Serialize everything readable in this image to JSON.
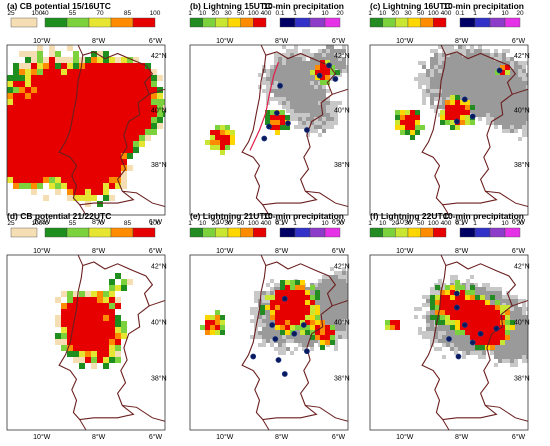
{
  "panels": [
    {
      "id": "a",
      "title": "(a) CB potential   15/16UTC",
      "kind": "cb",
      "legend": {
        "labels": [
          "25",
          "100"
        ],
        "colors": [
          "#f5deb3"
        ]
      },
      "legend2": {
        "labels": [
          "40",
          "55",
          "70",
          "85",
          "100"
        ],
        "colors": [
          "#1e8f1e",
          "#7cd23c",
          "#e6e632",
          "#ff8c00",
          "#e60000"
        ]
      },
      "right_labels": [
        "42°N",
        "40°N",
        "38°N"
      ],
      "top_labels": [
        "10°W",
        "8°W",
        "6°W"
      ],
      "bottom_labels": [
        "10°W",
        "8°W",
        "6°W"
      ]
    },
    {
      "id": "b",
      "title": "(b) Lightning   15UTC",
      "title2": "10-min precipitation",
      "kind": "lt",
      "legend": {
        "labels": [
          "1",
          "10",
          "20",
          "30",
          "50",
          "100",
          "400"
        ],
        "colors": [
          "#228b22",
          "#7cd23c",
          "#c8e632",
          "#ffd700",
          "#ff8c00",
          "#e60000"
        ]
      },
      "legend2": {
        "labels": [
          "0.1",
          "1",
          "4",
          "10",
          "20"
        ],
        "colors": [
          "#000064",
          "#3232c8",
          "#8c3cc8",
          "#e632e6"
        ]
      },
      "right_labels": [
        "42°N",
        "40°N",
        "38°N"
      ],
      "top_labels": [
        "10°W",
        "8°W",
        "6°W"
      ],
      "bottom_labels": [
        "10°W",
        "8°W",
        "6°W"
      ]
    },
    {
      "id": "c",
      "title": "(c) Lightning   16UTC",
      "title2": "10-min precipitation",
      "kind": "lt",
      "legend": {
        "labels": [
          "1",
          "10",
          "20",
          "30",
          "50",
          "100",
          "400"
        ],
        "colors": [
          "#228b22",
          "#7cd23c",
          "#c8e632",
          "#ffd700",
          "#ff8c00",
          "#e60000"
        ]
      },
      "legend2": {
        "labels": [
          "0.1",
          "1",
          "4",
          "10",
          "20"
        ],
        "colors": [
          "#000064",
          "#3232c8",
          "#8c3cc8",
          "#e632e6"
        ]
      },
      "right_labels": [
        "42°N",
        "40°N",
        "38°N"
      ],
      "top_labels": [
        "10°W",
        "8°W",
        "6°W"
      ],
      "bottom_labels": [
        "10°W",
        "8°W",
        "6°W"
      ]
    },
    {
      "id": "d",
      "title": "(d) CB potential   21/22UTC",
      "kind": "cb",
      "legend": {
        "labels": [
          "25",
          "100"
        ],
        "colors": [
          "#f5deb3"
        ]
      },
      "legend2": {
        "labels": [
          "40",
          "55",
          "70",
          "85",
          "100"
        ],
        "colors": [
          "#1e8f1e",
          "#7cd23c",
          "#e6e632",
          "#ff8c00",
          "#e60000"
        ]
      },
      "right_labels": [
        "42°N",
        "40°N",
        "38°N"
      ],
      "top_labels": [
        "10°W",
        "8°W",
        "6°W"
      ],
      "bottom_labels": [
        "10°W",
        "8°W",
        "6°W"
      ]
    },
    {
      "id": "e",
      "title": "(e) Lightning   21UTC",
      "title2": "10-min precipitation",
      "kind": "lt",
      "legend": {
        "labels": [
          "1",
          "10",
          "20",
          "30",
          "50",
          "100",
          "400"
        ],
        "colors": [
          "#228b22",
          "#7cd23c",
          "#c8e632",
          "#ffd700",
          "#ff8c00",
          "#e60000"
        ]
      },
      "legend2": {
        "labels": [
          "0.1",
          "1",
          "4",
          "10",
          "20"
        ],
        "colors": [
          "#000064",
          "#3232c8",
          "#8c3cc8",
          "#e632e6"
        ]
      },
      "right_labels": [
        "42°N",
        "40°N",
        "38°N"
      ],
      "top_labels": [
        "10°W",
        "8°W",
        "6°W"
      ],
      "bottom_labels": [
        "10°W",
        "8°W",
        "6°W"
      ]
    },
    {
      "id": "f",
      "title": "(f) Lightning   22UTC",
      "title2": "10-min precipitation",
      "kind": "lt",
      "legend": {
        "labels": [
          "1",
          "10",
          "20",
          "30",
          "50",
          "100",
          "400"
        ],
        "colors": [
          "#228b22",
          "#7cd23c",
          "#c8e632",
          "#ffd700",
          "#ff8c00",
          "#e60000"
        ]
      },
      "legend2": {
        "labels": [
          "0.1",
          "1",
          "4",
          "10",
          "20"
        ],
        "colors": [
          "#000064",
          "#3232c8",
          "#8c3cc8",
          "#e632e6"
        ]
      },
      "right_labels": [
        "42°N",
        "40°N",
        "38°N"
      ],
      "top_labels": [
        "10°W",
        "8°W",
        "6°W"
      ],
      "bottom_labels": [
        "10°W",
        "8°W",
        "6°W"
      ]
    }
  ],
  "colors": {
    "border": "#6b1f1f",
    "gray": "#9a9a9a",
    "lightgray": "#c8c8c8",
    "river": "#e0204a"
  }
}
